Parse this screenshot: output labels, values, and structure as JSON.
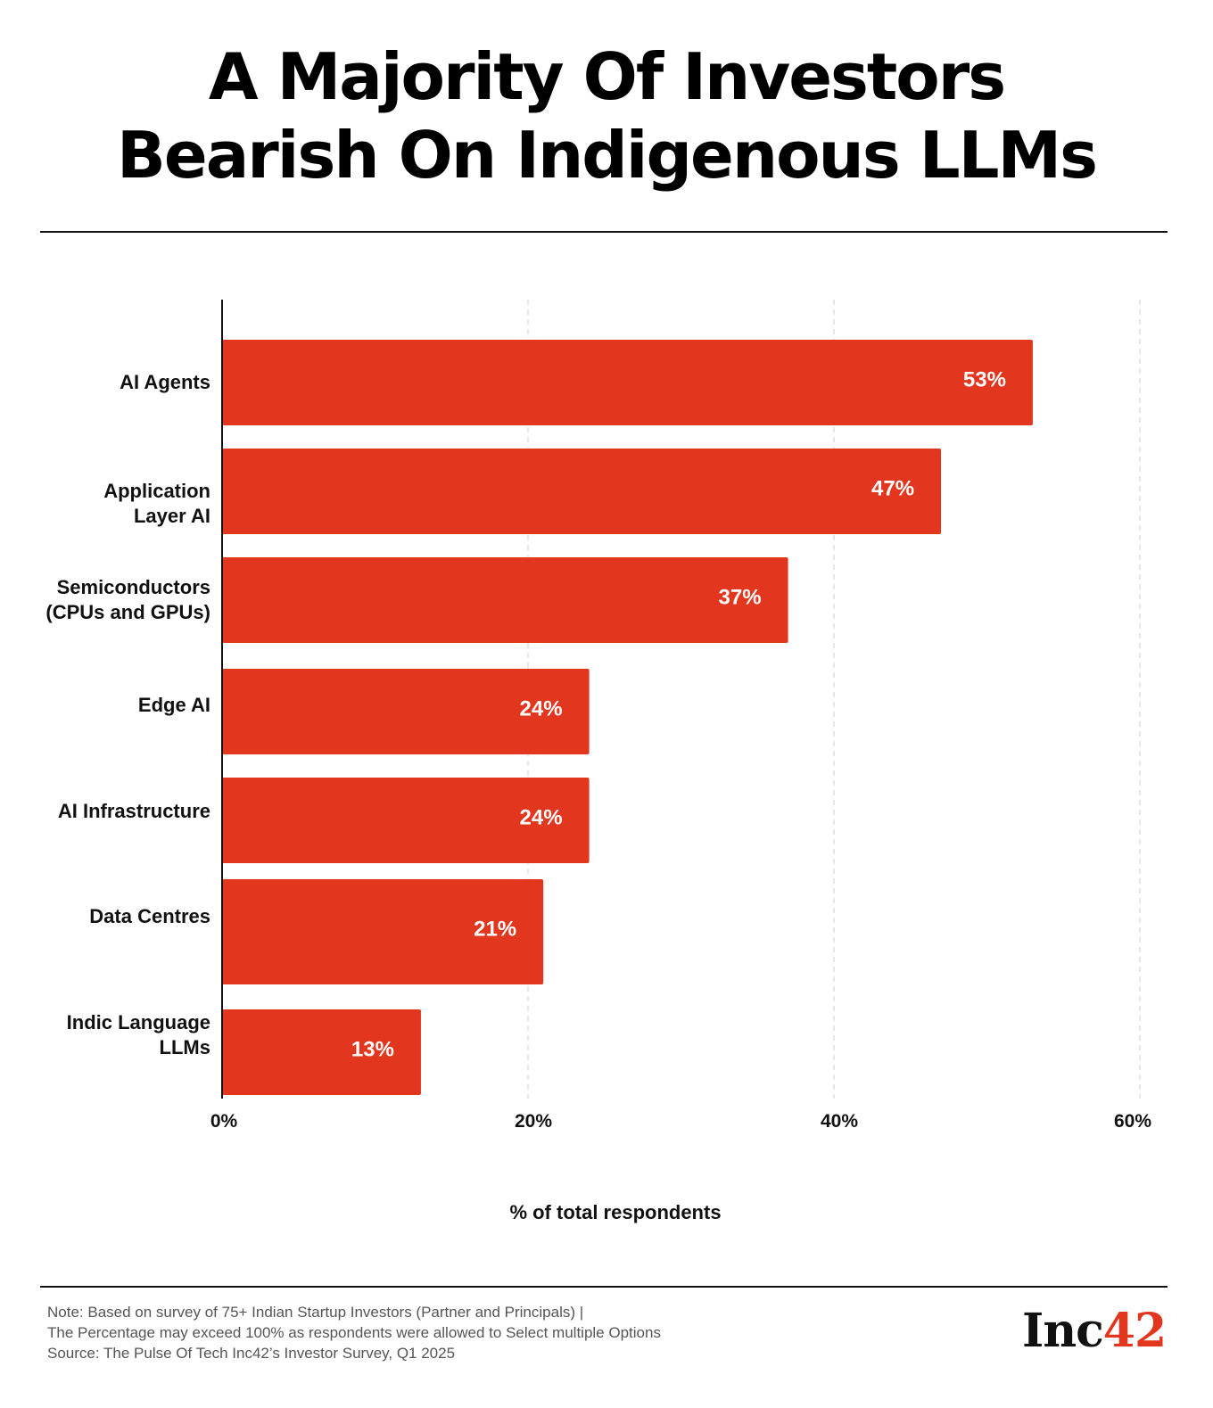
{
  "title": {
    "line1": "A Majority Of Investors",
    "line2": "Bearish On Indigenous LLMs"
  },
  "chart_data": {
    "type": "bar",
    "orientation": "horizontal",
    "categories": [
      "AI Agents",
      "Application\nLayer AI",
      "Semiconductors\n(CPUs and GPUs)",
      "Edge AI",
      "AI Infrastructure",
      "Data Centres",
      "Indic Language\nLLMs"
    ],
    "values": [
      53,
      47,
      37,
      24,
      24,
      21,
      13
    ],
    "value_labels": [
      "53%",
      "47%",
      "37%",
      "24%",
      "24%",
      "21%",
      "13%"
    ],
    "xlabel": "% of total respondents",
    "ylabel": "",
    "xlim": [
      0,
      60
    ],
    "x_ticks": [
      0,
      20,
      40,
      60
    ],
    "x_tick_labels": [
      "0%",
      "20%",
      "40%",
      "60%"
    ],
    "grid": "vertical dashed",
    "bar_color": "#e2361f",
    "label_color": "#ffffff"
  },
  "footer": {
    "note_line1": "Note: Based on survey of 75+ Indian Startup Investors (Partner and Principals) |",
    "note_line2": "The Percentage may exceed 100% as respondents were allowed to Select multiple Options",
    "source": "Source: The Pulse Of Tech Inc42’s Investor Survey, Q1 2025",
    "logo_text": "Inc",
    "logo_number": "42"
  }
}
